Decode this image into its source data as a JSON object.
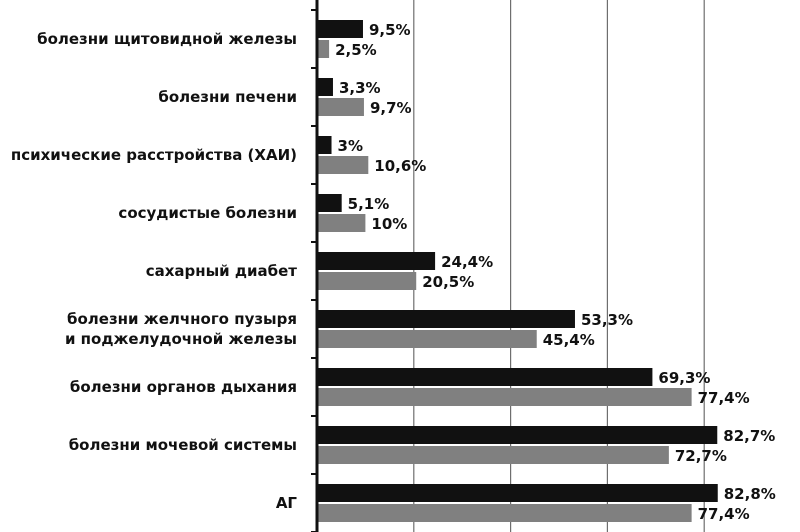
{
  "chart_data": {
    "type": "bar",
    "orientation": "horizontal",
    "categories": [
      [
        "болезни щитовидной железы"
      ],
      [
        "болезни печени"
      ],
      [
        "психические расстройства (ХАИ)"
      ],
      [
        "сосудистые болезни"
      ],
      [
        "сахарный диабет"
      ],
      [
        "болезни желчного пузыря",
        "и поджелудочной железы"
      ],
      [
        "болезни органов дыхания"
      ],
      [
        "болезни мочевой системы"
      ],
      [
        "АГ"
      ]
    ],
    "series": [
      {
        "color": "#111111",
        "values": [
          9.5,
          3.3,
          3,
          5.1,
          24.4,
          53.3,
          69.3,
          82.7,
          82.8
        ],
        "labels": [
          "9,5%",
          "3,3%",
          "3%",
          "5,1%",
          "24,4%",
          "53,3%",
          "69,3%",
          "82,7%",
          "82,8%"
        ]
      },
      {
        "color": "#808080",
        "values": [
          2.5,
          9.7,
          10.6,
          10,
          20.5,
          45.4,
          77.4,
          72.7,
          77.4
        ],
        "labels": [
          "2,5%",
          "9,7%",
          "10,6%",
          "10%",
          "20,5%",
          "45,4%",
          "77,4%",
          "72,7%",
          "77,4%"
        ]
      }
    ],
    "xlim": [
      0,
      100
    ],
    "x_unit": "%",
    "grid": "vertical",
    "legend": false
  }
}
